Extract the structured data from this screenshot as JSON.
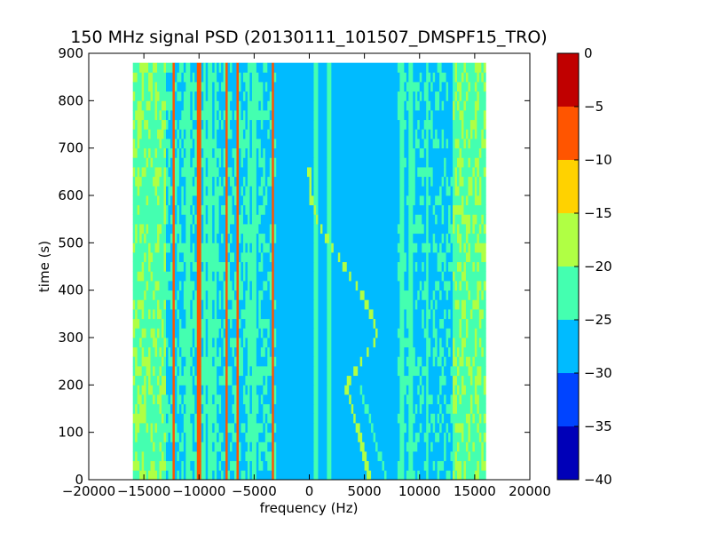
{
  "chart_data": {
    "type": "heatmap",
    "title": "150 MHz signal PSD (20130111_101507_DMSPF15_TRO)",
    "xlabel": "frequency (Hz)",
    "ylabel": "time (s)",
    "xlim": [
      -20000,
      20000
    ],
    "ylim": [
      0,
      900
    ],
    "xticks": [
      -20000,
      -15000,
      -10000,
      -5000,
      0,
      5000,
      10000,
      15000,
      20000
    ],
    "yticks": [
      0,
      100,
      200,
      300,
      400,
      500,
      600,
      700,
      800,
      900
    ],
    "data_extent": {
      "x": [
        -16000,
        16000
      ],
      "y": [
        0,
        880
      ]
    },
    "grid": false,
    "colorbar": {
      "range": [
        -40,
        0
      ],
      "ticks": [
        0,
        -5,
        -10,
        -15,
        -20,
        -25,
        -30,
        -35,
        -40
      ],
      "levels": [
        {
          "from": -40,
          "to": -35,
          "color": "#0000b8"
        },
        {
          "from": -35,
          "to": -30,
          "color": "#0044ff"
        },
        {
          "from": -30,
          "to": -25,
          "color": "#00bbff"
        },
        {
          "from": -25,
          "to": -20,
          "color": "#44ffb0"
        },
        {
          "from": -20,
          "to": -15,
          "color": "#b0ff44"
        },
        {
          "from": -15,
          "to": -10,
          "color": "#ffd200"
        },
        {
          "from": -10,
          "to": -5,
          "color": "#ff5500"
        },
        {
          "from": -5,
          "to": 0,
          "color": "#c00000"
        }
      ]
    },
    "features": {
      "strong_carriers_hz": [
        -12300,
        -10000,
        -7500,
        -6500,
        -3300
      ],
      "weak_carriers_hz": [
        -11000,
        -9500,
        -9000,
        -8500,
        -5500,
        -5000,
        600,
        1800,
        8400,
        9200,
        10700
      ],
      "doppler_trace": [
        {
          "t": 0,
          "f": 5500
        },
        {
          "t": 100,
          "f": 4500
        },
        {
          "t": 200,
          "f": 3300
        },
        {
          "t": 300,
          "f": 6200
        },
        {
          "t": 350,
          "f": 5600
        },
        {
          "t": 400,
          "f": 4600
        },
        {
          "t": 450,
          "f": 3200
        },
        {
          "t": 500,
          "f": 1800
        },
        {
          "t": 550,
          "f": 700
        },
        {
          "t": 600,
          "f": 100
        },
        {
          "t": 650,
          "f": 0
        }
      ],
      "faint_doppler_trace": [
        {
          "t": 0,
          "f": 5600
        },
        {
          "t": 100,
          "f": 4400
        },
        {
          "t": 200,
          "f": 3200
        }
      ],
      "low_level_band_hz": [
        -16000,
        -14000,
        13000,
        16000
      ]
    }
  }
}
